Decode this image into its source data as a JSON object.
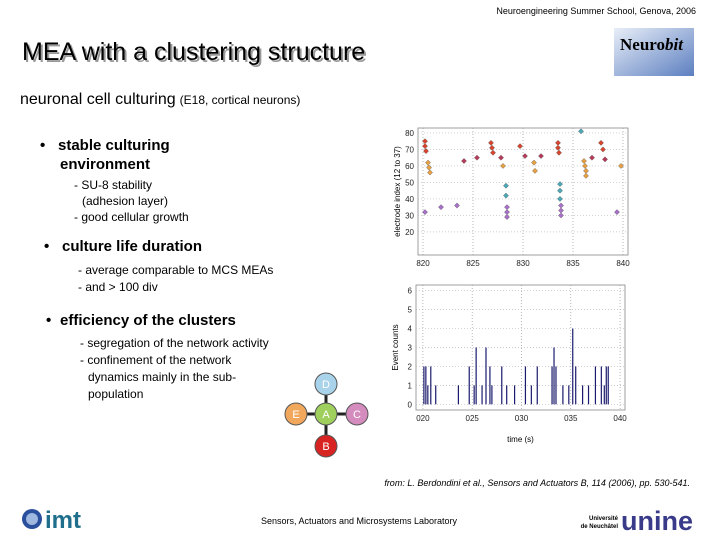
{
  "header": {
    "event": "Neuroengineering Summer School, Genova, 2006",
    "title": "MEA with a clustering structure",
    "logo_main": "Neuro",
    "logo_italic": "bit"
  },
  "subtitle": {
    "main": "neuronal cell culturing",
    "note": "(E18, cortical neurons)"
  },
  "bullets": [
    {
      "title_lines": [
        "stable culturing",
        "environment"
      ],
      "lines": [
        "- SU-8 stability",
        "(adhesion layer)",
        "- good cellular growth"
      ]
    },
    {
      "title_lines": [
        "culture life duration"
      ],
      "lines": [
        "- average comparable to MCS MEAs",
        "- and > 100 div"
      ]
    },
    {
      "title_lines": [
        "efficiency of the clusters"
      ],
      "lines": [
        "- segregation of the network  activity",
        "- confinement of the network",
        "dynamics mainly in the sub-",
        "population"
      ]
    }
  ],
  "clusters": [
    {
      "label": "D",
      "color": "#a9d3ea"
    },
    {
      "label": "E",
      "color": "#f2a85c"
    },
    {
      "label": "A",
      "color": "#9fcf5c"
    },
    {
      "label": "C",
      "color": "#d48bbd"
    },
    {
      "label": "B",
      "color": "#d82323"
    }
  ],
  "chart_data": [
    {
      "type": "scatter",
      "ylabel": "electrode index (12 to 37)",
      "xlim": [
        819.5,
        840.5
      ],
      "xticks": [
        820,
        825,
        830,
        835,
        840
      ],
      "ylim": [
        6,
        83
      ],
      "yticks": [
        20,
        30,
        40,
        50,
        60,
        70,
        80
      ],
      "grid": true,
      "series": [
        {
          "color": "#d8452c",
          "x": [
            820.2,
            820.2,
            820.3,
            826.8,
            826.9,
            827,
            829.7,
            833.5,
            833.5,
            833.6,
            837.8,
            838
          ],
          "values": [
            75,
            72,
            69,
            74,
            71,
            68,
            72,
            74,
            71,
            68,
            74,
            70
          ]
        },
        {
          "color": "#e8a040",
          "x": [
            820.5,
            820.6,
            820.7,
            828,
            831.1,
            831.2,
            836.1,
            836.2,
            836.3,
            836.3,
            839.8
          ],
          "values": [
            62,
            59,
            56,
            60,
            62,
            57,
            63,
            60,
            57,
            54,
            60
          ]
        },
        {
          "color": "#b83a5a",
          "x": [
            824.1,
            825.4,
            827.8,
            830.2,
            831.8,
            836.9,
            838.2
          ],
          "values": [
            63,
            65,
            65,
            66,
            66,
            65,
            64
          ]
        },
        {
          "color": "#4aa8b8",
          "x": [
            828.3,
            828.3,
            833.7,
            833.7,
            833.7,
            835.8
          ],
          "values": [
            48,
            42,
            49,
            45,
            40,
            81
          ]
        },
        {
          "color": "#a870c8",
          "x": [
            820.2,
            821.8,
            823.4,
            828.4,
            828.4,
            828.4,
            833.8,
            833.8,
            833.8,
            839.4
          ],
          "values": [
            32,
            35,
            36,
            35,
            32,
            29,
            36,
            33,
            30,
            32
          ]
        }
      ]
    },
    {
      "type": "bar",
      "xlabel": "time (s)",
      "ylabel": "Event counts",
      "color": "#1a1a6e",
      "xlim": [
        19.3,
        40.5
      ],
      "xticks": [
        {
          "value": 20,
          "label": "020"
        },
        {
          "value": 25,
          "label": "025"
        },
        {
          "value": 30,
          "label": "030"
        },
        {
          "value": 35,
          "label": "035"
        },
        {
          "value": 40,
          "label": "040"
        }
      ],
      "ylim": [
        -0.3,
        6.3
      ],
      "yticks": [
        0,
        1,
        2,
        3,
        4,
        5,
        6
      ],
      "grid": true,
      "x": [
        20.1,
        20.3,
        20.5,
        20.8,
        21.3,
        23.6,
        24.7,
        25.2,
        25.4,
        26,
        26.4,
        26.8,
        27,
        28,
        28.5,
        29.3,
        30.4,
        31,
        31.6,
        33.1,
        33.3,
        33.5,
        34.2,
        34.8,
        35.2,
        35.5,
        36.2,
        36.8,
        37.5,
        38.1,
        38.4,
        38.6,
        38.8
      ],
      "values": [
        2,
        2,
        1,
        2,
        1,
        1,
        2,
        1,
        3,
        1,
        3,
        2,
        1,
        2,
        1,
        1,
        2,
        1,
        2,
        2,
        3,
        2,
        1,
        1,
        4,
        2,
        1,
        1,
        2,
        2,
        1,
        2,
        2
      ]
    }
  ],
  "citation": "from: L. Berdondini et al., Sensors and Actuators B, 114 (2006), pp. 530-541.",
  "footer": {
    "imt": "imt",
    "lab": "Sensors, Actuators and Microsystems Laboratory",
    "uni_small_1": "Université",
    "uni_small_2": "de Neuchâtel",
    "uni_big": "unine"
  }
}
